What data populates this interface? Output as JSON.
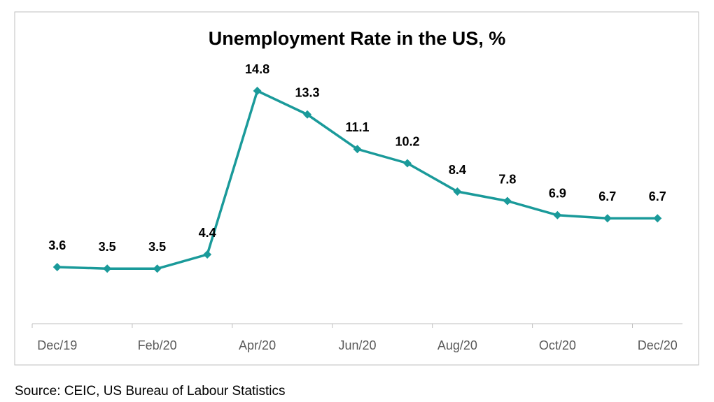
{
  "chart_data": {
    "type": "line",
    "title": "Unemployment Rate in the US, %",
    "source": "Source: CEIC, US Bureau of Labour Statistics",
    "categories": [
      "Dec/19",
      null,
      "Feb/20",
      null,
      "Apr/20",
      null,
      "Jun/20",
      null,
      "Aug/20",
      null,
      "Oct/20",
      null,
      "Dec/20"
    ],
    "series": [
      {
        "name": "Unemployment Rate",
        "color": "#1a9a9a",
        "values": [
          3.6,
          3.5,
          3.5,
          4.4,
          14.8,
          13.3,
          11.1,
          10.2,
          8.4,
          7.8,
          6.9,
          6.7,
          6.7
        ]
      }
    ],
    "ylim": [
      0,
      16
    ]
  }
}
